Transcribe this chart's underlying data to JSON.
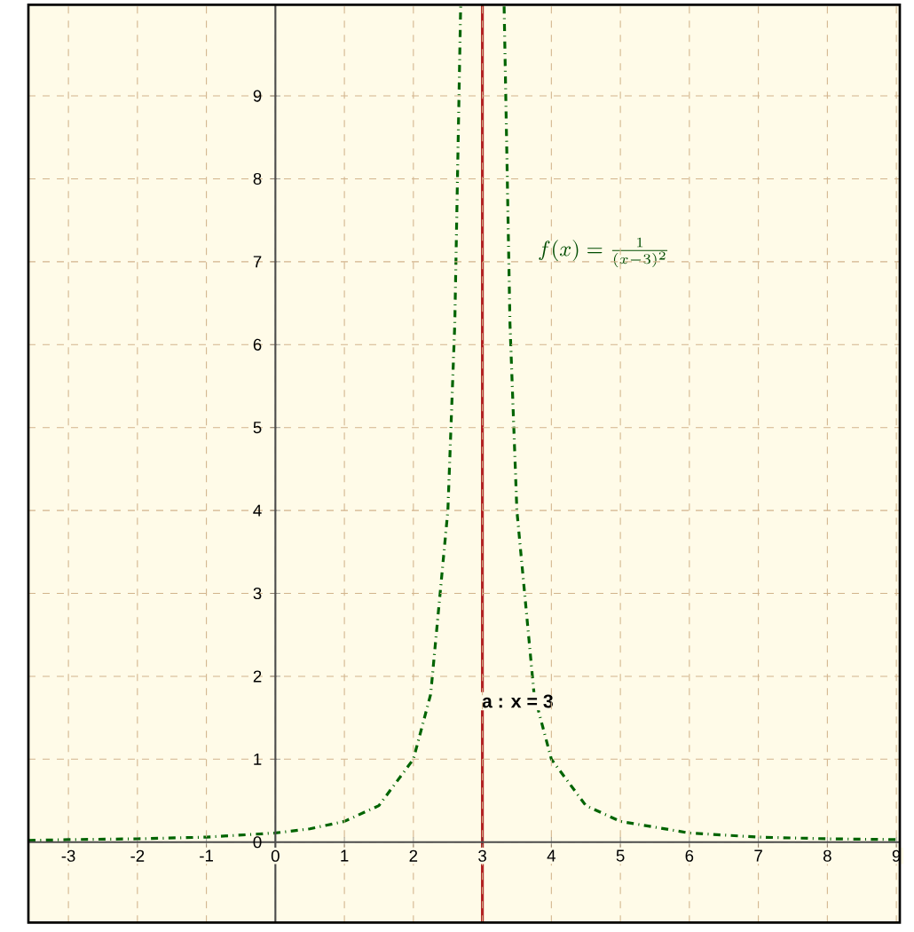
{
  "chart_data": {
    "type": "line",
    "xlim": [
      -3.58,
      9.05
    ],
    "ylim": [
      -0.97,
      10.1
    ],
    "xticks": [
      -3,
      -2,
      -1,
      0,
      1,
      2,
      3,
      4,
      5,
      6,
      7,
      8,
      9
    ],
    "yticks": [
      0,
      1,
      2,
      3,
      4,
      5,
      6,
      7,
      8,
      9
    ],
    "grid": true,
    "line_style": "dashdot",
    "marker": "none",
    "series": [
      {
        "color": "#006400",
        "x": [
          -3.58,
          -3,
          -2,
          -1,
          0,
          0.5,
          1,
          1.5,
          2,
          2.25,
          2.5,
          2.6,
          2.685,
          3,
          3.315,
          3.4,
          3.5,
          3.75,
          4,
          4.5,
          5,
          6,
          7,
          8,
          9.05
        ],
        "values": [
          0.02,
          0.03,
          0.04,
          0.06,
          0.11,
          0.16,
          0.25,
          0.44,
          1,
          1.78,
          4,
          6.25,
          10.08,
          null,
          10.08,
          6.25,
          4,
          1.78,
          1,
          0.44,
          0.25,
          0.11,
          0.06,
          0.04,
          0.03
        ]
      }
    ],
    "ref_lines": [
      {
        "axis": "x",
        "value": 3,
        "label": "a : x = 3",
        "color": "#b22222"
      }
    ],
    "annotations": [
      "f(x) = \\frac{1}{(x - 3)^{2}}"
    ]
  }
}
